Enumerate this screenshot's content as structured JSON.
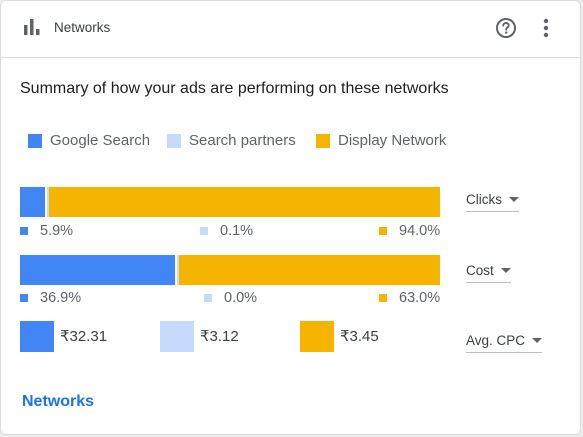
{
  "colors": {
    "google_search": "#4285f4",
    "search_partners": "#c6dafc",
    "display_network": "#f4b400",
    "link": "#1a73e8"
  },
  "header": {
    "icon": "bar-chart-icon",
    "title": "Networks",
    "help_icon": "help-circle-icon",
    "more_icon": "more-vert-icon"
  },
  "summary": "Summary of how your ads are performing on these networks",
  "legend": [
    {
      "label": "Google Search"
    },
    {
      "label": "Search partners"
    },
    {
      "label": "Display Network"
    }
  ],
  "rows": [
    {
      "metric": "Clicks",
      "fractions": [
        0.059,
        0.001,
        0.94
      ],
      "values": [
        "5.9%",
        "0.1%",
        "94.0%"
      ]
    },
    {
      "metric": "Cost",
      "fractions": [
        0.369,
        0.0,
        0.63
      ],
      "values": [
        "36.9%",
        "0.0%",
        "63.0%"
      ]
    }
  ],
  "cpc": {
    "metric": "Avg. CPC",
    "values": [
      "₹32.31",
      "₹3.12",
      "₹3.45"
    ]
  },
  "footer_link": "Networks"
}
